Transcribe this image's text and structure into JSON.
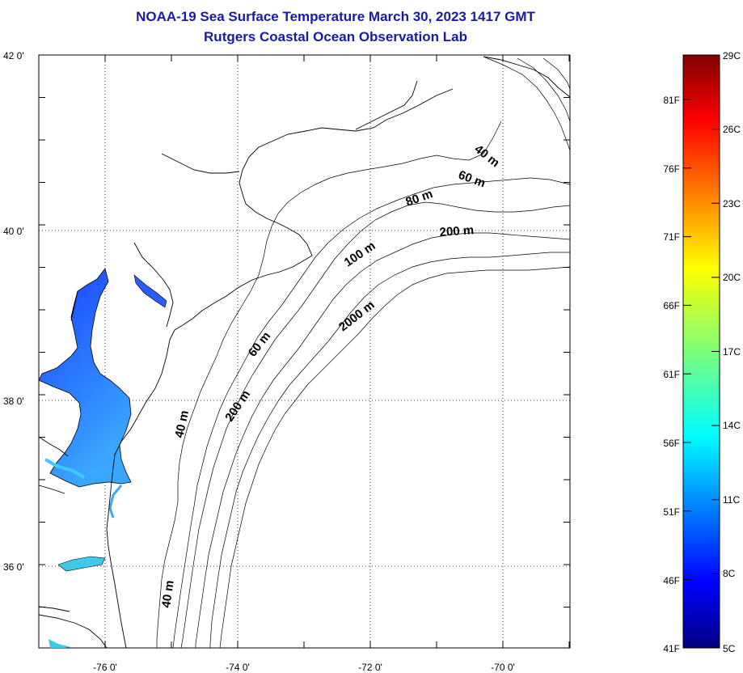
{
  "title": {
    "line1": "NOAA-19 Sea Surface Temperature March 30, 2023 1417 GMT",
    "line2": "Rutgers Coastal Ocean Observation Lab"
  },
  "map": {
    "lat_labels": [
      "42 0'",
      "40 0'",
      "38 0'",
      "36 0'"
    ],
    "lon_labels": [
      "-76 0'",
      "-74 0'",
      "-72 0'",
      "-70 0'"
    ],
    "lat_range": [
      35,
      42
    ],
    "lon_range": [
      -77,
      -69
    ],
    "grid": "dotted",
    "depth_labels": [
      "40 m",
      "60 m",
      "80 m",
      "200 m",
      "100 m",
      "2000 m",
      "60 m",
      "200 m",
      "40 m",
      "40 m"
    ]
  },
  "colorbar": {
    "celsius_labels": [
      "29C",
      "26C",
      "23C",
      "20C",
      "17C",
      "14C",
      "11C",
      "8C",
      "5C"
    ],
    "fahrenheit_labels": [
      "81F",
      "76F",
      "71F",
      "66F",
      "61F",
      "56F",
      "51F",
      "46F",
      "41F"
    ],
    "celsius_range": [
      5,
      29
    ],
    "colormap": "jet"
  }
}
